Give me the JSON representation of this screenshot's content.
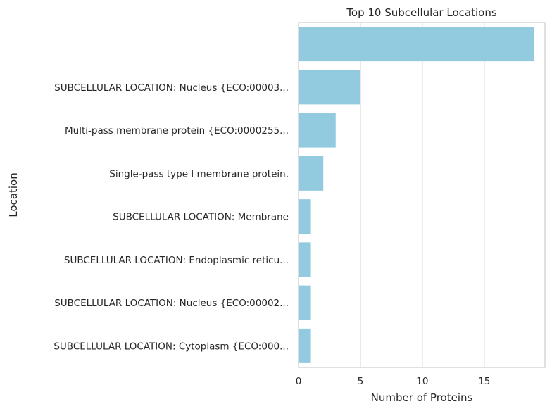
{
  "chart_data": {
    "type": "bar",
    "orientation": "horizontal",
    "title": "Top 10 Subcellular Locations",
    "xlabel": "Number of Proteins",
    "ylabel": "Location",
    "categories": [
      "",
      "SUBCELLULAR LOCATION: Nucleus {ECO:00003...",
      "Multi-pass membrane protein {ECO:0000255...",
      "Single-pass type I membrane protein.",
      "SUBCELLULAR LOCATION: Membrane",
      "SUBCELLULAR LOCATION: Endoplasmic reticu...",
      "SUBCELLULAR LOCATION: Nucleus {ECO:00002...",
      "SUBCELLULAR LOCATION: Cytoplasm {ECO:000..."
    ],
    "values": [
      19,
      5,
      3,
      2,
      1,
      1,
      1,
      1
    ],
    "xlim": [
      0,
      19.9
    ],
    "xticks": [
      0,
      5,
      10,
      15
    ],
    "grid": "x",
    "bar_color": "#92cbe0"
  }
}
